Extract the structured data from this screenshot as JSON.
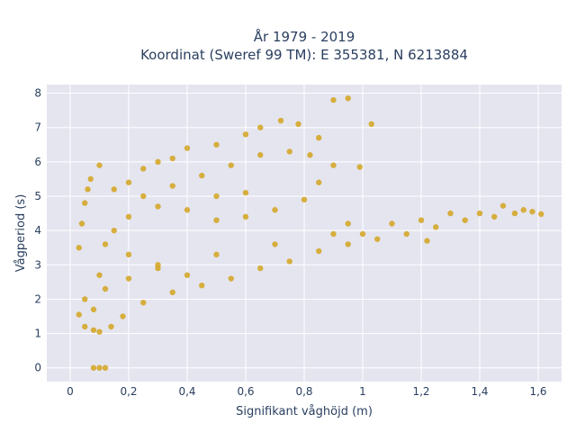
{
  "chart_data": {
    "type": "scatter",
    "title_line1": "År 1979 - 2019",
    "title_line2": "Koordinat (Sweref 99 TM): E 355381, N 6213884",
    "xlabel": "Signifikant våghöjd (m)",
    "ylabel": "Vågperiod (s)",
    "xlim": [
      -0.08,
      1.68
    ],
    "ylim": [
      -0.4,
      8.25
    ],
    "x_ticks": [
      0,
      0.2,
      0.4,
      0.6,
      0.8,
      1,
      1.2,
      1.4,
      1.6
    ],
    "x_tick_labels": [
      "0",
      "0,2",
      "0,4",
      "0,6",
      "0,8",
      "1",
      "1,2",
      "1,4",
      "1,6"
    ],
    "y_ticks": [
      0,
      1,
      2,
      3,
      4,
      5,
      6,
      7,
      8
    ],
    "y_tick_labels": [
      "0",
      "1",
      "2",
      "3",
      "4",
      "5",
      "6",
      "7",
      "8"
    ],
    "grid": true,
    "marker_color": "#d4a41f",
    "background_color": "#e5e5f0",
    "points": [
      [
        0.08,
        0
      ],
      [
        0.1,
        0
      ],
      [
        0.12,
        0
      ],
      [
        0.03,
        1.55
      ],
      [
        0.05,
        1.2
      ],
      [
        0.08,
        1.1
      ],
      [
        0.1,
        1.05
      ],
      [
        0.14,
        1.2
      ],
      [
        0.18,
        1.5
      ],
      [
        0.25,
        1.9
      ],
      [
        0.35,
        2.2
      ],
      [
        0.45,
        2.4
      ],
      [
        0.55,
        2.6
      ],
      [
        0.65,
        2.9
      ],
      [
        0.75,
        3.1
      ],
      [
        0.85,
        3.4
      ],
      [
        0.95,
        3.6
      ],
      [
        1.05,
        3.75
      ],
      [
        1.15,
        3.9
      ],
      [
        1.25,
        4.1
      ],
      [
        1.35,
        4.3
      ],
      [
        1.45,
        4.4
      ],
      [
        1.52,
        4.5
      ],
      [
        1.55,
        4.6
      ],
      [
        1.58,
        4.55
      ],
      [
        1.61,
        4.48
      ],
      [
        1.48,
        4.72
      ],
      [
        1.3,
        4.5
      ],
      [
        1.1,
        4.2
      ],
      [
        0.9,
        3.9
      ],
      [
        0.7,
        3.6
      ],
      [
        0.5,
        3.3
      ],
      [
        0.3,
        3.0
      ],
      [
        0.2,
        2.6
      ],
      [
        0.12,
        2.3
      ],
      [
        0.05,
        2.0
      ],
      [
        0.03,
        3.5
      ],
      [
        0.04,
        4.2
      ],
      [
        0.05,
        4.8
      ],
      [
        0.06,
        5.2
      ],
      [
        0.07,
        5.5
      ],
      [
        0.1,
        5.9
      ],
      [
        0.15,
        5.2
      ],
      [
        0.2,
        5.4
      ],
      [
        0.25,
        5.8
      ],
      [
        0.3,
        6.0
      ],
      [
        0.35,
        6.1
      ],
      [
        0.4,
        6.4
      ],
      [
        0.5,
        6.5
      ],
      [
        0.6,
        6.8
      ],
      [
        0.65,
        7.0
      ],
      [
        0.72,
        7.2
      ],
      [
        0.78,
        7.1
      ],
      [
        0.82,
        6.2
      ],
      [
        0.85,
        6.7
      ],
      [
        0.9,
        7.8
      ],
      [
        0.95,
        7.85
      ],
      [
        1.03,
        7.1
      ],
      [
        0.99,
        5.85
      ],
      [
        0.9,
        5.9
      ],
      [
        0.8,
        4.9
      ],
      [
        0.7,
        4.6
      ],
      [
        0.6,
        4.4
      ],
      [
        0.5,
        4.3
      ],
      [
        0.4,
        4.6
      ],
      [
        0.3,
        4.7
      ],
      [
        0.2,
        4.4
      ],
      [
        0.15,
        4.0
      ],
      [
        0.12,
        3.6
      ],
      [
        0.4,
        2.7
      ],
      [
        0.3,
        2.9
      ],
      [
        0.2,
        3.3
      ],
      [
        0.1,
        2.7
      ],
      [
        0.25,
        5.0
      ],
      [
        0.35,
        5.3
      ],
      [
        0.45,
        5.6
      ],
      [
        0.55,
        5.9
      ],
      [
        0.65,
        6.2
      ],
      [
        0.75,
        6.3
      ],
      [
        0.85,
        5.4
      ],
      [
        0.95,
        4.2
      ],
      [
        1.0,
        3.9
      ],
      [
        1.2,
        4.3
      ],
      [
        1.4,
        4.5
      ],
      [
        1.22,
        3.7
      ],
      [
        0.6,
        5.1
      ],
      [
        0.5,
        5.0
      ],
      [
        0.08,
        1.7
      ]
    ]
  }
}
